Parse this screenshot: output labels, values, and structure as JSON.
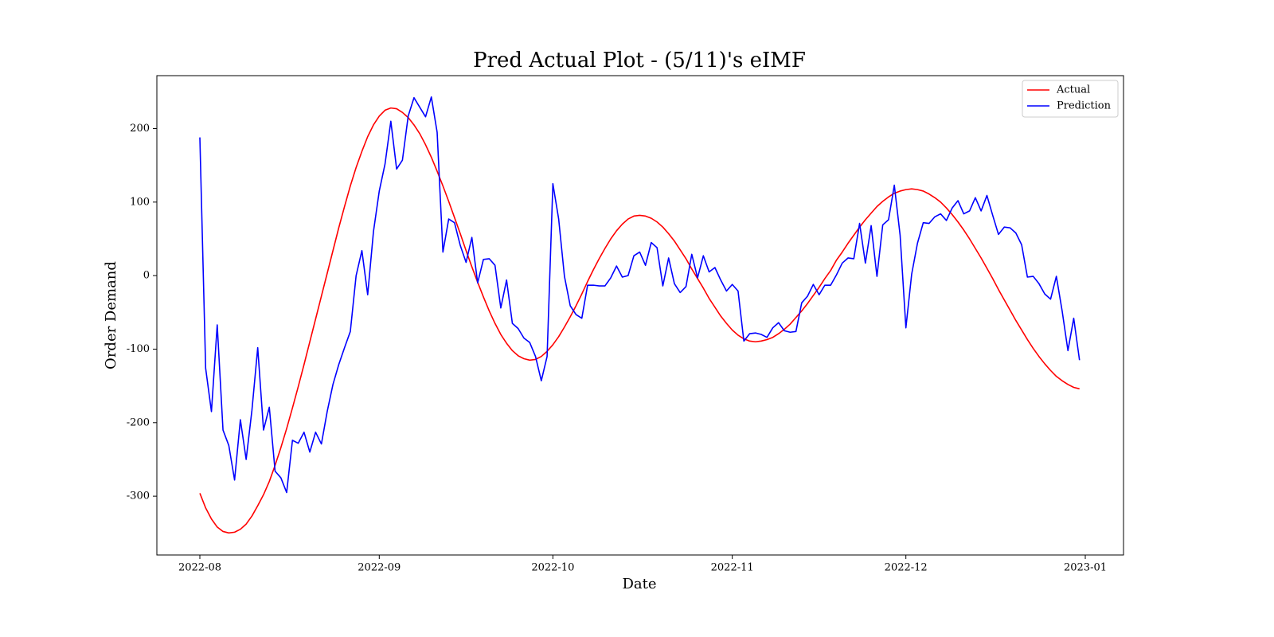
{
  "chart_data": {
    "type": "line",
    "title": "Pred Actual Plot - (5/11)'s eIMF",
    "xlabel": "Date",
    "ylabel": "Order Demand",
    "categories": [
      "2022-08",
      null,
      null,
      null,
      null,
      null,
      null,
      null,
      null,
      null,
      null,
      null,
      null,
      null,
      null,
      null,
      null,
      null,
      null,
      null,
      null,
      null,
      null,
      null,
      null,
      null,
      null,
      null,
      null,
      null,
      null,
      "2022-09",
      null,
      null,
      null,
      null,
      null,
      null,
      null,
      null,
      null,
      null,
      null,
      null,
      null,
      null,
      null,
      null,
      null,
      null,
      null,
      null,
      null,
      null,
      null,
      null,
      null,
      null,
      null,
      null,
      null,
      "2022-10",
      null,
      null,
      null,
      null,
      null,
      null,
      null,
      null,
      null,
      null,
      null,
      null,
      null,
      null,
      null,
      null,
      null,
      null,
      null,
      null,
      null,
      null,
      null,
      null,
      null,
      null,
      null,
      null,
      null,
      null,
      "2022-11",
      null,
      null,
      null,
      null,
      null,
      null,
      null,
      null,
      null,
      null,
      null,
      null,
      null,
      null,
      null,
      null,
      null,
      null,
      null,
      null,
      null,
      null,
      null,
      null,
      null,
      null,
      null,
      null,
      null,
      "2022-12",
      null,
      null,
      null,
      null,
      null,
      null,
      null,
      null,
      null,
      null,
      null,
      null,
      null,
      null,
      null,
      null,
      null,
      null,
      null,
      null,
      null,
      null,
      null,
      null,
      null,
      null,
      null,
      null,
      null,
      null,
      "2023-01"
    ],
    "series": [
      {
        "name": "Actual",
        "color": "#ff0000",
        "values": [
          -296,
          -316,
          -331,
          -342,
          -348,
          -350,
          -349,
          -345,
          -338,
          -327,
          -313,
          -298,
          -280,
          -258,
          -234,
          -208,
          -180,
          -151,
          -121,
          -90,
          -59,
          -28,
          3,
          34,
          65,
          94,
          122,
          147,
          169,
          189,
          205,
          217,
          225,
          228,
          227,
          222,
          215,
          205,
          193,
          178,
          161,
          142,
          122,
          101,
          79,
          57,
          34,
          12,
          -9,
          -29,
          -48,
          -65,
          -80,
          -92,
          -102,
          -109,
          -113,
          -115,
          -114,
          -110,
          -103,
          -94,
          -83,
          -70,
          -56,
          -41,
          -25,
          -8,
          8,
          23,
          37,
          50,
          61,
          70,
          77,
          81,
          82,
          81,
          78,
          73,
          66,
          57,
          47,
          35,
          23,
          9,
          -4,
          -17,
          -31,
          -43,
          -55,
          -65,
          -74,
          -81,
          -86,
          -89,
          -90,
          -89,
          -87,
          -84,
          -79,
          -73,
          -66,
          -57,
          -48,
          -38,
          -27,
          -16,
          -4,
          7,
          21,
          32,
          44,
          55,
          66,
          76,
          85,
          94,
          101,
          107,
          112,
          115,
          117,
          118,
          117,
          115,
          111,
          106,
          100,
          92,
          83,
          73,
          62,
          50,
          37,
          24,
          10,
          -4,
          -19,
          -33,
          -47,
          -61,
          -74,
          -87,
          -99,
          -110,
          -120,
          -129,
          -137,
          -143,
          -148,
          -152,
          -154,
          null
        ]
      },
      {
        "name": "Prediction",
        "color": "#0000ff",
        "values": [
          188,
          -126,
          -185,
          -67,
          -210,
          -231,
          -278,
          -196,
          -250,
          -183,
          -98,
          -210,
          -179,
          -266,
          -275,
          -295,
          -224,
          -228,
          -213,
          -240,
          -213,
          -229,
          -185,
          -148,
          -121,
          -98,
          -76,
          0,
          34,
          -26,
          60,
          115,
          152,
          210,
          145,
          157,
          217,
          242,
          229,
          216,
          243,
          195,
          32,
          77,
          72,
          41,
          18,
          52,
          -10,
          22,
          23,
          14,
          -44,
          -6,
          -65,
          -72,
          -85,
          -91,
          -110,
          -143,
          -110,
          125,
          77,
          -1,
          -41,
          -53,
          -58,
          -13,
          -13,
          -14,
          -14,
          -3,
          13,
          -2,
          0,
          27,
          32,
          14,
          45,
          38,
          -14,
          24,
          -11,
          -23,
          -15,
          29,
          -3,
          27,
          5,
          11,
          -6,
          -21,
          -12,
          -21,
          -89,
          -79,
          -78,
          -80,
          -84,
          -71,
          -64,
          -75,
          -77,
          -76,
          -37,
          -28,
          -12,
          -26,
          -13,
          -13,
          1,
          17,
          24,
          23,
          71,
          17,
          68,
          -1,
          69,
          76,
          123,
          55,
          -71,
          2,
          44,
          72,
          71,
          80,
          84,
          75,
          92,
          102,
          84,
          88,
          106,
          88,
          109,
          82,
          56,
          66,
          65,
          58,
          42,
          -2,
          -1,
          -11,
          -25,
          -32,
          -1,
          -48,
          -102,
          -58,
          -115,
          null
        ]
      }
    ],
    "ylim": [
      -380,
      272
    ],
    "yticks": [
      -300,
      -200,
      -100,
      0,
      100,
      200
    ],
    "grid": false,
    "legend": "upper right"
  }
}
